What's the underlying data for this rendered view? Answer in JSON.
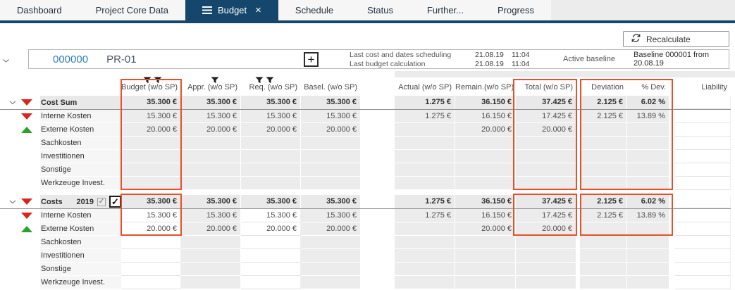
{
  "tabs": [
    {
      "label": "Dashboard",
      "active": false
    },
    {
      "label": "Project Core Data",
      "active": false
    },
    {
      "label": "Budget",
      "active": true,
      "has_menu_icon": true,
      "has_close_icon": true
    },
    {
      "label": "Schedule",
      "active": false
    },
    {
      "label": "Status",
      "active": false
    },
    {
      "label": "Further...",
      "active": false
    },
    {
      "label": "Progress",
      "active": false
    }
  ],
  "toolbar": {
    "recalculate_label": "Recalculate"
  },
  "project": {
    "id": "000000",
    "code": "PR-01",
    "add_label": "+",
    "info_rows": [
      {
        "label": "Last cost and dates scheduling",
        "date": "21.08.19",
        "time": "11:04"
      },
      {
        "label": "Last budget calculation",
        "date": "21.08.19",
        "time": "11:04"
      }
    ],
    "active_baseline_label": "Active baseline",
    "baseline_value": "Baseline 000001 from 20.08.19"
  },
  "table": {
    "columns": [
      {
        "key": "budget",
        "label": "Budget (w/o SP)",
        "filter_icons": 2
      },
      {
        "key": "appr",
        "label": "Appr. (w/o SP)",
        "filter_icons": 1
      },
      {
        "key": "req",
        "label": "Req. (w/o SP)",
        "filter_icons": 2
      },
      {
        "key": "basel",
        "label": "Basel. (w/o SP)",
        "filter_icons": 0
      },
      {
        "key": "actual",
        "label": "Actual (w/o SP)",
        "filter_icons": 0
      },
      {
        "key": "remain",
        "label": "Remain.(w/o SP)",
        "filter_icons": 0
      },
      {
        "key": "total",
        "label": "Total (w/o SP)",
        "filter_icons": 0
      },
      {
        "key": "deviation",
        "label": "Deviation",
        "filter_icons": 0
      },
      {
        "key": "pdev",
        "label": "% Dev.",
        "filter_icons": 0
      },
      {
        "key": "liability",
        "label": "Liability",
        "filter_icons": 0
      }
    ],
    "blocks": [
      {
        "id": "cost-sum",
        "editable_columns": [],
        "rows": [
          {
            "label": "Cost Sum",
            "icon": "red-down-triangle",
            "chevron": true,
            "parent": true,
            "values": [
              "35.300 €",
              "35.300 €",
              "35.300 €",
              "35.300 €",
              "1.275 €",
              "36.150 €",
              "37.425 €",
              "2.125 €",
              "6.02 %",
              ""
            ]
          },
          {
            "label": "Interne Kosten",
            "icon": "red-down-triangle",
            "values": [
              "15.300 €",
              "15.300 €",
              "15.300 €",
              "15.300 €",
              "1.275 €",
              "16.150 €",
              "17.425 €",
              "2.125 €",
              "13.89 %",
              ""
            ]
          },
          {
            "label": "Externe Kosten",
            "icon": "green-up-triangle",
            "values": [
              "20.000 €",
              "20.000 €",
              "20.000 €",
              "20.000 €",
              "",
              "20.000 €",
              "20.000 €",
              "",
              "",
              ""
            ]
          },
          {
            "label": "Sachkosten",
            "values": [
              "",
              "",
              "",
              "",
              "",
              "",
              "",
              "",
              "",
              ""
            ]
          },
          {
            "label": "Investitionen",
            "values": [
              "",
              "",
              "",
              "",
              "",
              "",
              "",
              "",
              "",
              ""
            ]
          },
          {
            "label": "Sonstige",
            "values": [
              "",
              "",
              "",
              "",
              "",
              "",
              "",
              "",
              "",
              ""
            ]
          },
          {
            "label": "Werkzeuge Invest.",
            "values": [
              "",
              "",
              "",
              "",
              "",
              "",
              "",
              "",
              "",
              ""
            ]
          }
        ]
      },
      {
        "id": "costs-2019",
        "editable_columns": [
          0,
          2
        ],
        "rows": [
          {
            "label": "Costs",
            "year": "2019",
            "checkbox_gray_checked": true,
            "checkbox_black_checked": true,
            "icon": "red-down-triangle",
            "chevron": true,
            "parent": true,
            "values": [
              "35.300 €",
              "35.300 €",
              "35.300 €",
              "35.300 €",
              "1.275 €",
              "36.150 €",
              "37.425 €",
              "2.125 €",
              "6.02 %",
              ""
            ]
          },
          {
            "label": "Interne Kosten",
            "icon": "red-down-triangle",
            "values": [
              "15.300 €",
              "15.300 €",
              "15.300 €",
              "15.300 €",
              "1.275 €",
              "16.150 €",
              "17.425 €",
              "2.125 €",
              "13.89 %",
              ""
            ]
          },
          {
            "label": "Externe Kosten",
            "icon": "green-up-triangle",
            "values": [
              "20.000 €",
              "20.000 €",
              "20.000 €",
              "20.000 €",
              "",
              "20.000 €",
              "20.000 €",
              "",
              "",
              ""
            ]
          },
          {
            "label": "Sachkosten",
            "values": [
              "",
              "",
              "",
              "",
              "",
              "",
              "",
              "",
              "",
              ""
            ]
          },
          {
            "label": "Investitionen",
            "values": [
              "",
              "",
              "",
              "",
              "",
              "",
              "",
              "",
              "",
              ""
            ]
          },
          {
            "label": "Sonstige",
            "values": [
              "",
              "",
              "",
              "",
              "",
              "",
              "",
              "",
              "",
              ""
            ]
          },
          {
            "label": "Werkzeuge Invest.",
            "values": [
              "",
              "",
              "",
              "",
              "",
              "",
              "",
              "",
              "",
              ""
            ]
          }
        ]
      }
    ]
  },
  "highlights": {
    "color": "#e8502a",
    "boxes": [
      "budget-block1",
      "total-block1",
      "deviation-block1",
      "budget-block2",
      "total-block2",
      "deviation-block2"
    ]
  },
  "colors": {
    "navy": "#14476b",
    "accent_orange": "#e8502a",
    "red_triangle": "#d9261c",
    "green_triangle": "#2ba32b",
    "link_blue": "#2f7ec1"
  },
  "icons": {
    "menu": "hamburger-icon",
    "close": "close-icon",
    "recalculate": "circular-arrows-icon",
    "filter": "funnel-icon",
    "chevron": "chevron-down-icon",
    "add": "plus-icon",
    "check": "✓"
  }
}
